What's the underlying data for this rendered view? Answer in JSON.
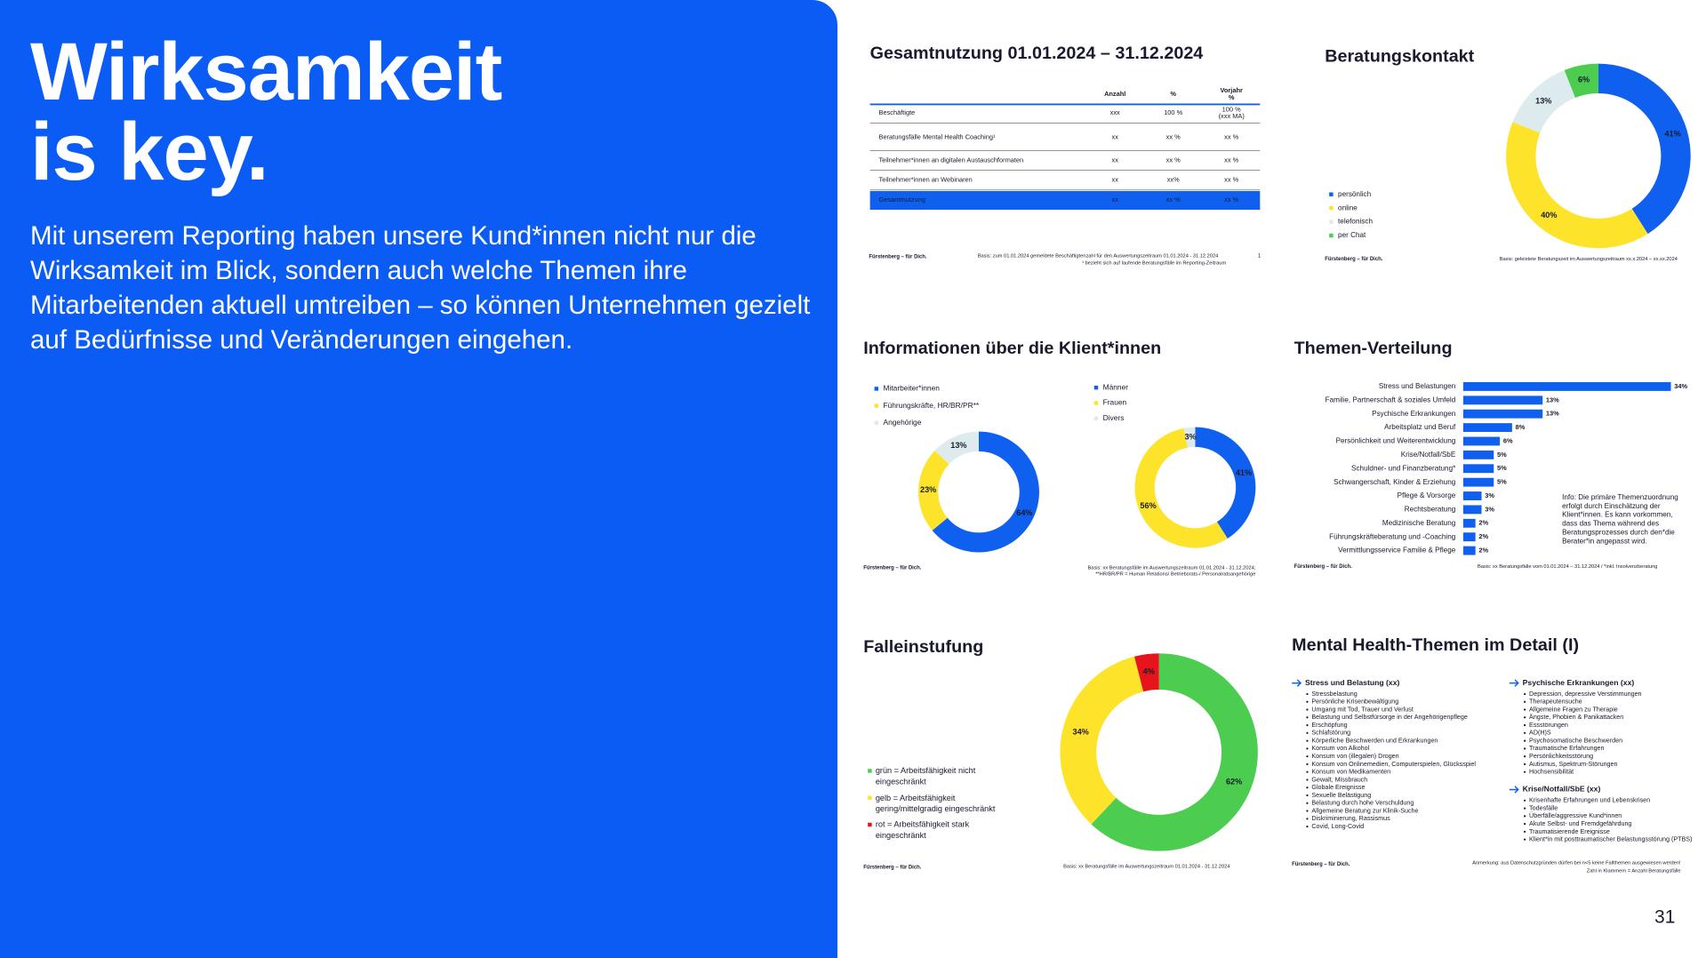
{
  "slide": {
    "headline": [
      "Wirksamkeit",
      "is key."
    ],
    "text": "Mit unserem Reporting haben unsere Kund*innen nicht nur die Wirksamkeit im Blick, sondern auch welche Themen ihre Mitarbeitenden aktuell umtreiben – so können Unternehmen gezielt auf Bedürfnisse und Veränderungen eingehen.",
    "page_number": "31"
  },
  "thumbnails": {
    "usage": {
      "title": "Gesamtnutzung 01.01.2024 – 31.12.2024",
      "table": {
        "header": [
          "Anzahl",
          "%",
          [
            "Vorjahr",
            "%"
          ]
        ],
        "rows": [
          [
            "Beschäftigte",
            "xxx",
            "100 %",
            [
              "100 %",
              "(xxx MA)"
            ]
          ],
          [
            "Beratungsfälle Mental Health Coaching¹",
            "xx",
            "xx %",
            "xx %"
          ],
          [
            "Teilnehmer*innen an digitalen Austauschformaten",
            "xx",
            "xx %",
            "xx %"
          ],
          [
            "Teilnehmer*innen an Webinaren",
            "xx",
            "xx%",
            "xx %"
          ],
          [
            "Gesamtnutzung",
            "xx",
            "xx %",
            "xx %"
          ]
        ]
      },
      "footer": "Fürstenberg – für Dich.",
      "notes": [
        "Basis: zum 01.01.2024 gemeldete Beschäftigtenzahl für den Auswertungszeitraum 01.01.2024 - 31.12.2024",
        "¹ bezieht sich auf laufende Beratungsfälle im Reporting-Zeitraum"
      ],
      "page": "1"
    },
    "contact": {
      "title": "Beratungskontakt",
      "footer": "Fürstenberg – für Dich.",
      "notes": [
        "Basis: geleistete Beratungszeit im Auswertungszeitraum xx.x.2024 – xx.xx.2024"
      ]
    },
    "clients": {
      "title": "Informationen über die Klient*innen",
      "footer": "Fürstenberg – für Dich.",
      "notes": [
        "Basis: xx Beratungsfälle im Auswertungszeitraum 01.01.2024 - 31.12.2024;",
        "**HR/BR/PR = Human Relations/ Betriebsrats-/ Personalratsangehörige"
      ]
    },
    "topics": {
      "title": "Themen-Verteilung",
      "info": [
        "Info: Die primäre Themenzuordnung",
        "erfolgt durch Einschätzung der",
        "Klient*innen. Es kann vorkommen,",
        "dass das Thema während des",
        "Beratungsprozesses durch den*die",
        "Berater*in angepasst wird."
      ],
      "footer": "Fürstenberg – für Dich.",
      "notes": [
        "Basis: xx Beratungsfälle vom 01.01.2024 – 31.12.2024 / *inkl. Insolvenzberatung"
      ]
    },
    "cases": {
      "title": "Falleinstufung",
      "footer": "Fürstenberg – für Dich.",
      "notes": [
        "Basis: xx Beratungsfälle im Auswertungszeitraum 01.01.2024 - 31.12.2024"
      ]
    },
    "detail": {
      "title": "Mental Health-Themen im Detail (I)",
      "sections": [
        {
          "heading": "Stress und Belastung (xx)",
          "items": [
            "Stressbelastung",
            "Persönliche Krisenbewältigung",
            "Umgang mit Tod, Trauer und Verlust",
            "Belastung und Selbstfürsorge in der Angehörigenpflege",
            "Erschöpfung",
            "Schlafstörung",
            "Körperliche Beschwerden und Erkrankungen",
            "Konsum von Alkohol",
            "Konsum von (illegalen) Drogen",
            "Konsum von Onlinemedien, Computerspielen, Glücksspiel",
            "Konsum von Medikamenten",
            "Gewalt, Missbrauch",
            "Globale Ereignisse",
            "Sexuelle Belästigung",
            "Belastung durch hohe Verschuldung",
            "Allgemeine Beratung zur Klinik-Suche",
            "Diskriminierung, Rassismus",
            "Covid, Long-Covid"
          ]
        },
        {
          "heading": "Psychische Erkrankungen (xx)",
          "items": [
            "Depression, depressive Verstimmungen",
            "Therapeutensuche",
            "Allgemeine Fragen zu Therapie",
            "Ängste, Phobien & Panikattacken",
            "Essstörungen",
            "AD(H)S",
            "Psychosomatische Beschwerden",
            "Traumatische Erfahrungen",
            "Persönlichkeitsstörung",
            "Autismus, Spektrum-Störungen",
            "Hochsensibilität"
          ]
        },
        {
          "heading": "Krise/Notfall/SbE (xx)",
          "items": [
            "Krisenhafte Erfahrungen und Lebenskrisen",
            "Todesfälle",
            "Überfälle/aggressive Kund*innen",
            "Akute Selbst- und Fremdgefährdung",
            "Traumatisierende Ereignisse",
            "Klient*in mit posttraumatischer Belastungsstörung (PTBS)"
          ]
        }
      ],
      "footer": "Fürstenberg – für Dich.",
      "notes": [
        "Anmerkung: aus Datenschutzgründen dürfen bei n<5 keine Fallthemen ausgewiesen werden!",
        "Zahl in Klammern = Anzahl Beratungsfälle"
      ]
    }
  },
  "chart_data": [
    {
      "type": "donut",
      "categories": [
        "persönlich",
        "online",
        "telefonisch",
        "per Chat"
      ],
      "values": [
        41,
        40,
        13,
        6
      ],
      "value_labels": [
        "41%",
        "40%",
        "13%",
        "6%"
      ],
      "colors": [
        "#1060f0",
        "#fde42a",
        "#deebee",
        "#4ccd50"
      ]
    },
    {
      "type": "donut",
      "categories": [
        "Mitarbeiter*innen",
        "Führungskräfte, HR/BR/PR**",
        "Angehörige"
      ],
      "values": [
        64,
        23,
        13
      ],
      "value_labels": [
        "64%",
        "23%",
        "13%"
      ],
      "colors": [
        "#1060f0",
        "#fde42a",
        "#deebee"
      ]
    },
    {
      "type": "donut",
      "categories": [
        "Männer",
        "Frauen",
        "Divers"
      ],
      "values": [
        41,
        56,
        3
      ],
      "value_labels": [
        "41%",
        "56%",
        "3%"
      ],
      "colors": [
        "#1060f0",
        "#fde42a",
        "#deebee"
      ]
    },
    {
      "type": "hbar",
      "categories": [
        "Stress und Belastungen",
        "Familie, Partnerschaft & soziales Umfeld",
        "Psychische Erkrankungen",
        "Arbeitsplatz und Beruf",
        "Persönlichkeit und Weiterentwicklung",
        "Krise/Notfall/SbE",
        "Schuldner- und Finanzberatung*",
        "Schwangerschaft, Kinder & Erziehung",
        "Pflege & Vorsorge",
        "Rechtsberatung",
        "Medizinische Beratung",
        "Führungskräfteberatung und -Coaching",
        "Vermittlungsservice Familie & Pflege"
      ],
      "values": [
        34,
        13,
        13,
        8,
        6,
        5,
        5,
        5,
        3,
        3,
        2,
        2,
        2
      ],
      "value_labels": [
        "34%",
        "13%",
        "13%",
        "8%",
        "6%",
        "5%",
        "5%",
        "5%",
        "3%",
        "3%",
        "2%",
        "2%",
        "2%"
      ],
      "color": "#1060f0"
    },
    {
      "type": "donut",
      "categories": [
        "grün = Arbeitsfähigkeit nicht eingeschränkt",
        "gelb = Arbeitsfähigkeit gering/mittelgradig eingeschränkt",
        "rot = Arbeitsfähigkeit stark eingeschränkt"
      ],
      "values": [
        62,
        34,
        4
      ],
      "value_labels": [
        "62%",
        "34%",
        "4%"
      ],
      "colors": [
        "#4ccd50",
        "#fde42a",
        "#e8141c"
      ]
    }
  ]
}
